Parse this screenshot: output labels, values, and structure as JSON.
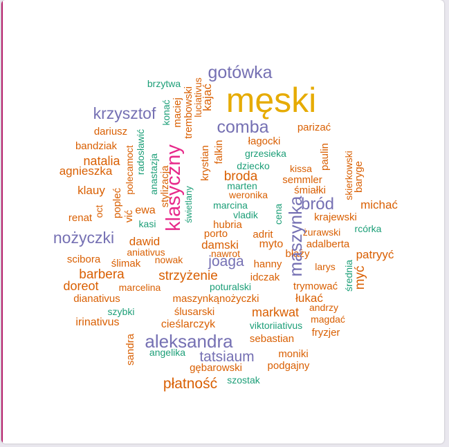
{
  "palette": {
    "orange": "#d95f02",
    "purple": "#7570b3",
    "magenta": "#e7298a",
    "green": "#1b9e77",
    "gold": "#e6ab02"
  },
  "words": [
    {
      "text": "męski",
      "color": "gold"
    },
    {
      "text": "gotówka",
      "color": "purple"
    },
    {
      "text": "krzysztof",
      "color": "purple"
    },
    {
      "text": "comba",
      "color": "purple"
    },
    {
      "text": "brzytwa",
      "color": "green"
    },
    {
      "text": "parizać",
      "color": "orange"
    },
    {
      "text": "dariusz",
      "color": "orange"
    },
    {
      "text": "łagocki",
      "color": "orange"
    },
    {
      "text": "bandziak",
      "color": "orange"
    },
    {
      "text": "grzesieka",
      "color": "green"
    },
    {
      "text": "natalia",
      "color": "orange"
    },
    {
      "text": "dziecko",
      "color": "green"
    },
    {
      "text": "kissa",
      "color": "orange"
    },
    {
      "text": "agnieszka",
      "color": "orange"
    },
    {
      "text": "broda",
      "color": "orange"
    },
    {
      "text": "semmler",
      "color": "orange"
    },
    {
      "text": "marten",
      "color": "green"
    },
    {
      "text": "klauy",
      "color": "orange"
    },
    {
      "text": "weronika",
      "color": "orange"
    },
    {
      "text": "śmiałki",
      "color": "orange"
    },
    {
      "text": "krajewski",
      "color": "orange"
    },
    {
      "text": "ewa",
      "color": "orange"
    },
    {
      "text": "marcina",
      "color": "green"
    },
    {
      "text": "bród",
      "color": "purple"
    },
    {
      "text": "michać",
      "color": "orange"
    },
    {
      "text": "renat",
      "color": "orange"
    },
    {
      "text": "vladik",
      "color": "green"
    },
    {
      "text": "kasi",
      "color": "green"
    },
    {
      "text": "hubria",
      "color": "orange"
    },
    {
      "text": "żurawski",
      "color": "orange"
    },
    {
      "text": "rcórka",
      "color": "green"
    },
    {
      "text": "nożyczki",
      "color": "purple"
    },
    {
      "text": "porto",
      "color": "orange"
    },
    {
      "text": "adrit",
      "color": "orange"
    },
    {
      "text": "dawid",
      "color": "orange"
    },
    {
      "text": "damski",
      "color": "orange"
    },
    {
      "text": "myto",
      "color": "orange"
    },
    {
      "text": "adalberta",
      "color": "orange"
    },
    {
      "text": "aniativus",
      "color": "orange"
    },
    {
      "text": "nawrot",
      "color": "orange"
    },
    {
      "text": "błaży",
      "color": "orange"
    },
    {
      "text": "patryyć",
      "color": "orange"
    },
    {
      "text": "scibora",
      "color": "orange"
    },
    {
      "text": "ślimak",
      "color": "orange"
    },
    {
      "text": "nowak",
      "color": "orange"
    },
    {
      "text": "joaga",
      "color": "purple"
    },
    {
      "text": "hanny",
      "color": "orange"
    },
    {
      "text": "larys",
      "color": "orange"
    },
    {
      "text": "barbera",
      "color": "orange"
    },
    {
      "text": "strzyżenie",
      "color": "orange"
    },
    {
      "text": "idczak",
      "color": "orange"
    },
    {
      "text": "doreot",
      "color": "orange"
    },
    {
      "text": "marcelina",
      "color": "orange"
    },
    {
      "text": "poturalski",
      "color": "green"
    },
    {
      "text": "trymować",
      "color": "orange"
    },
    {
      "text": "dianativus",
      "color": "orange"
    },
    {
      "text": "maszynkąnożyczki",
      "color": "orange"
    },
    {
      "text": "łukać",
      "color": "orange"
    },
    {
      "text": "andrzy",
      "color": "orange"
    },
    {
      "text": "szybki",
      "color": "green"
    },
    {
      "text": "ślusarski",
      "color": "orange"
    },
    {
      "text": "markwat",
      "color": "orange"
    },
    {
      "text": "magdać",
      "color": "orange"
    },
    {
      "text": "irinativus",
      "color": "orange"
    },
    {
      "text": "cieślarczyk",
      "color": "orange"
    },
    {
      "text": "viktoriiativus",
      "color": "green"
    },
    {
      "text": "fryzjer",
      "color": "orange"
    },
    {
      "text": "aleksandra",
      "color": "purple"
    },
    {
      "text": "sebastian",
      "color": "orange"
    },
    {
      "text": "angelika",
      "color": "green"
    },
    {
      "text": "tatsiaum",
      "color": "purple"
    },
    {
      "text": "moniki",
      "color": "orange"
    },
    {
      "text": "gębarowski",
      "color": "orange"
    },
    {
      "text": "podgajny",
      "color": "orange"
    },
    {
      "text": "płatność",
      "color": "orange"
    },
    {
      "text": "szostak",
      "color": "green"
    },
    {
      "text": "klasyczny",
      "color": "magenta"
    },
    {
      "text": "maszynka",
      "color": "purple"
    },
    {
      "text": "myć",
      "color": "orange"
    },
    {
      "text": "kajać",
      "color": "orange"
    },
    {
      "text": "luciativus",
      "color": "orange"
    },
    {
      "text": "trembowski",
      "color": "orange"
    },
    {
      "text": "maciej",
      "color": "orange"
    },
    {
      "text": "konać",
      "color": "green"
    },
    {
      "text": "falkin",
      "color": "orange"
    },
    {
      "text": "krystian",
      "color": "orange"
    },
    {
      "text": "radosławić",
      "color": "green"
    },
    {
      "text": "polecamoct",
      "color": "orange"
    },
    {
      "text": "anastazja",
      "color": "green"
    },
    {
      "text": "stylizacja",
      "color": "orange"
    },
    {
      "text": "świetlany",
      "color": "green"
    },
    {
      "text": "popleć",
      "color": "orange"
    },
    {
      "text": "vić",
      "color": "orange"
    },
    {
      "text": "oct",
      "color": "orange"
    },
    {
      "text": "cena",
      "color": "green"
    },
    {
      "text": "paulin",
      "color": "orange"
    },
    {
      "text": "skierkowski",
      "color": "orange"
    },
    {
      "text": "baryge",
      "color": "orange"
    },
    {
      "text": "średnia",
      "color": "green"
    },
    {
      "text": "sandra",
      "color": "orange"
    }
  ]
}
